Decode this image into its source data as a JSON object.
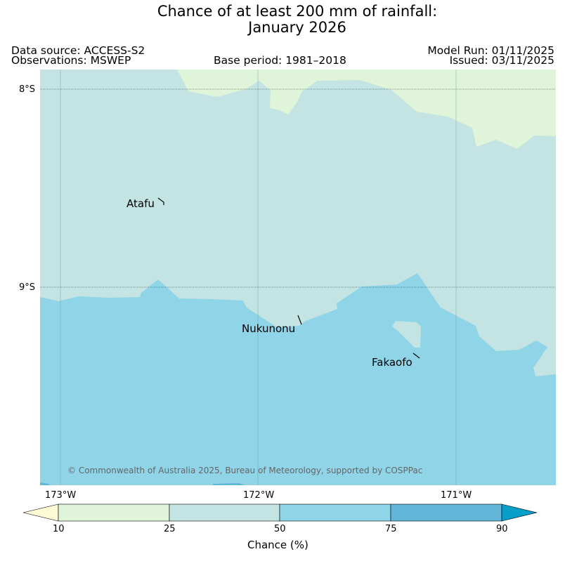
{
  "title": {
    "line1": "Chance of at least 200 mm of rainfall:",
    "line2": "January 2026"
  },
  "header": {
    "data_source": "Data source: ACCESS-S2",
    "observations": "Observations: MSWEP",
    "base_period": "Base period: 1981–2018",
    "model_run": "Model Run: 01/11/2025",
    "issued": "Issued: 03/11/2025"
  },
  "map": {
    "lat_labels": [
      "8°S",
      "9°S"
    ],
    "lon_labels": [
      "173°W",
      "172°W",
      "171°W"
    ],
    "places": [
      "Atafu",
      "Nukunonu",
      "Fakaofo"
    ],
    "copyright": "© Commonwealth of Australia 2025, Bureau of Meteorology, supported by COSPPac",
    "colors": {
      "band_10_25": "#dff4d8",
      "band_25_50": "#c3e4e2",
      "band_50_75": "#90d4e8",
      "gridline": "#5b8f87"
    }
  },
  "colorbar": {
    "label": "Chance (%)",
    "ticks": [
      "10",
      "25",
      "50",
      "75",
      "90"
    ],
    "colors": [
      "#fdfbd6",
      "#dff4d8",
      "#c3e4e2",
      "#90d4e8",
      "#62b6d8",
      "#079fca"
    ]
  }
}
